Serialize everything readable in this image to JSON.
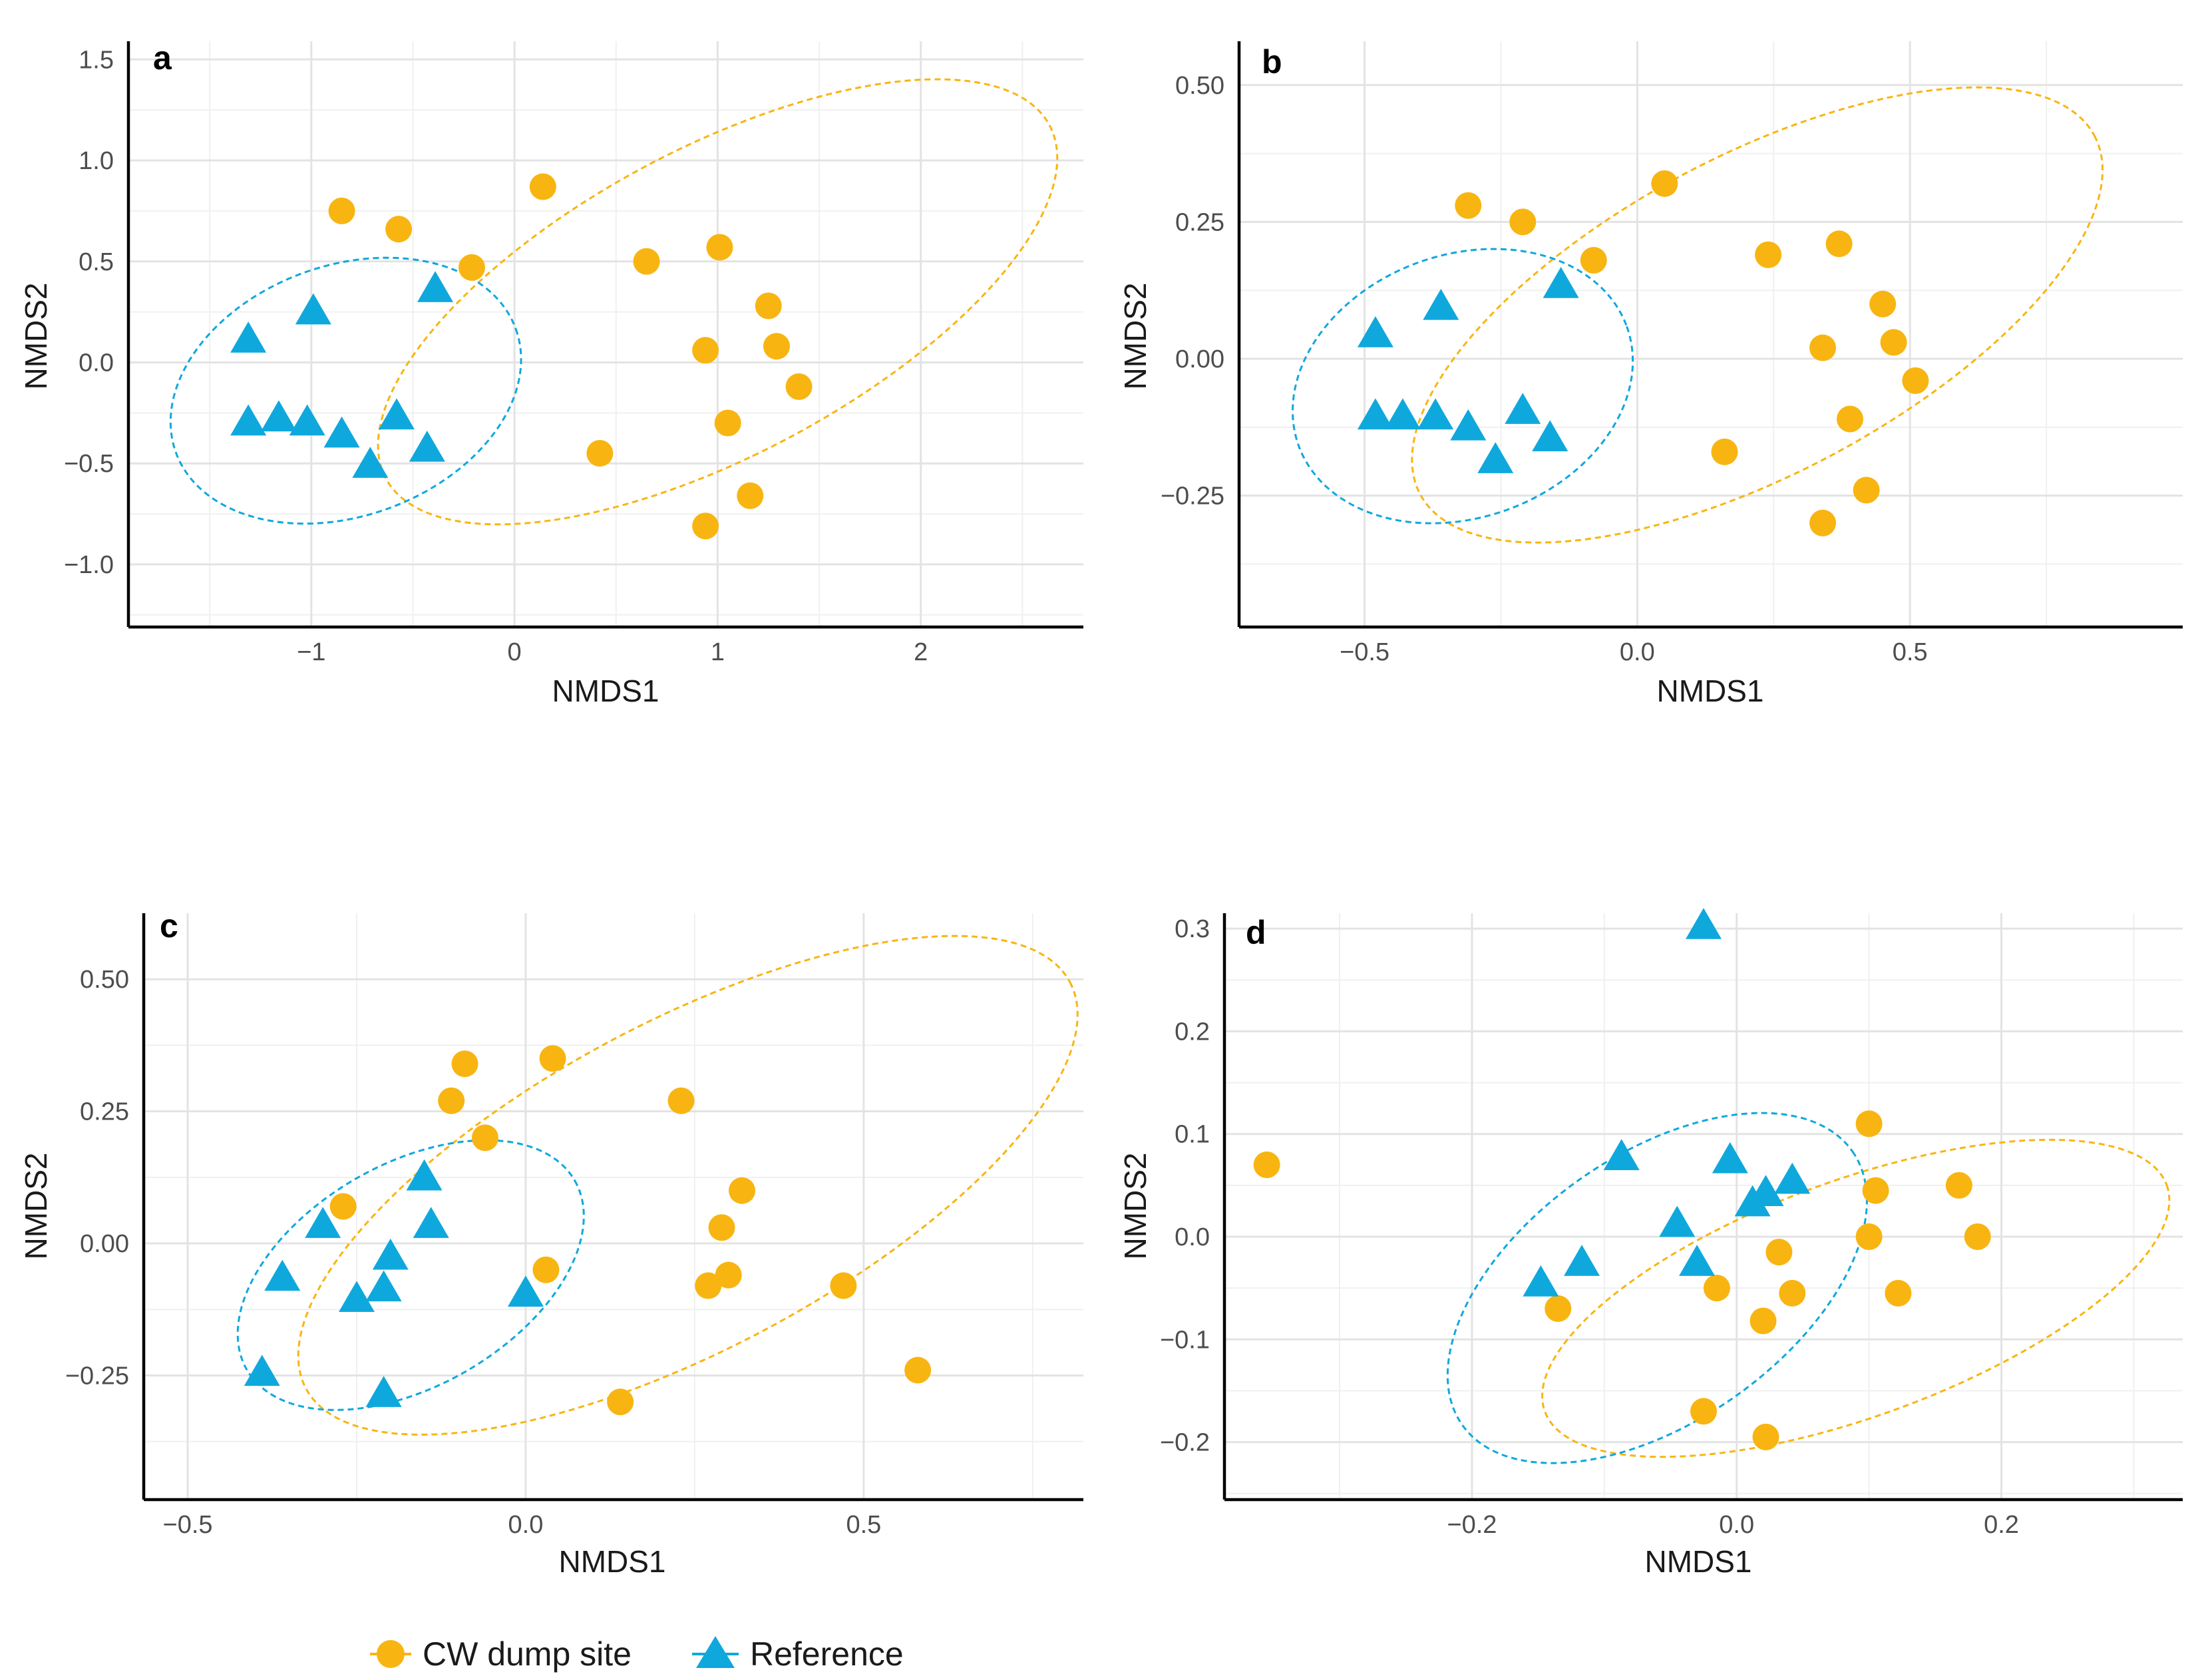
{
  "colors": {
    "cw": "#f8b511",
    "ref": "#0fa8dd",
    "grid_major": "#e3e3e3",
    "grid_minor": "#f0f0f0",
    "axis": "#000000"
  },
  "legend": {
    "cw_label": "CW dump site",
    "ref_label": "Reference"
  },
  "chart_data": [
    {
      "type": "scatter",
      "panel_label": "a",
      "xlabel": "NMDS1",
      "ylabel": "NMDS2",
      "xlim": [
        -1.9,
        2.8
      ],
      "ylim": [
        -1.31,
        1.59
      ],
      "xticks": [
        -1,
        0,
        1,
        2
      ],
      "xtick_labels": [
        "−1",
        "0",
        "1",
        "2"
      ],
      "yticks": [
        -1.0,
        -0.5,
        0.0,
        0.5,
        1.0,
        1.5
      ],
      "ytick_labels": [
        "−1.0",
        "−0.5",
        "0.0",
        "0.5",
        "1.0",
        "1.5"
      ],
      "series": [
        {
          "name": "CW dump site",
          "marker": "circle",
          "points": [
            [
              -0.85,
              0.75
            ],
            [
              -0.57,
              0.66
            ],
            [
              -0.21,
              0.47
            ],
            [
              0.14,
              0.87
            ],
            [
              0.65,
              0.5
            ],
            [
              1.01,
              0.57
            ],
            [
              1.25,
              0.28
            ],
            [
              1.29,
              0.08
            ],
            [
              0.94,
              0.06
            ],
            [
              1.4,
              -0.12
            ],
            [
              1.05,
              -0.3
            ],
            [
              0.42,
              -0.45
            ],
            [
              1.16,
              -0.66
            ],
            [
              0.94,
              -0.81
            ]
          ]
        },
        {
          "name": "Reference",
          "marker": "triangle",
          "points": [
            [
              -1.31,
              0.1
            ],
            [
              -0.99,
              0.24
            ],
            [
              -0.39,
              0.35
            ],
            [
              -1.31,
              -0.31
            ],
            [
              -1.16,
              -0.29
            ],
            [
              -1.02,
              -0.31
            ],
            [
              -0.85,
              -0.37
            ],
            [
              -0.58,
              -0.28
            ],
            [
              -0.71,
              -0.52
            ],
            [
              -0.43,
              -0.44
            ]
          ]
        }
      ],
      "ellipses": [
        {
          "series": "CW dump site",
          "cx": 1.0,
          "cy": 0.3,
          "rx": 1.85,
          "ry": 0.76,
          "angle_deg": -28
        },
        {
          "series": "Reference",
          "cx": -0.83,
          "cy": -0.14,
          "rx": 0.89,
          "ry": 0.62,
          "angle_deg": -20
        }
      ]
    },
    {
      "type": "scatter",
      "panel_label": "b",
      "xlabel": "NMDS1",
      "ylabel": "NMDS2",
      "xlim": [
        -0.73,
        1.0
      ],
      "ylim": [
        -0.49,
        0.58
      ],
      "xticks": [
        -0.5,
        0.0,
        0.5
      ],
      "xtick_labels": [
        "−0.5",
        "0.0",
        "0.5"
      ],
      "yticks": [
        -0.25,
        0.0,
        0.25,
        0.5
      ],
      "ytick_labels": [
        "−0.25",
        "0.00",
        "0.25",
        "0.50"
      ],
      "series": [
        {
          "name": "CW dump site",
          "marker": "circle",
          "points": [
            [
              -0.31,
              0.28
            ],
            [
              -0.21,
              0.25
            ],
            [
              -0.08,
              0.18
            ],
            [
              0.05,
              0.32
            ],
            [
              0.24,
              0.19
            ],
            [
              0.37,
              0.21
            ],
            [
              0.45,
              0.1
            ],
            [
              0.47,
              0.03
            ],
            [
              0.34,
              0.02
            ],
            [
              0.51,
              -0.04
            ],
            [
              0.39,
              -0.11
            ],
            [
              0.16,
              -0.17
            ],
            [
              0.42,
              -0.24
            ],
            [
              0.34,
              -0.3
            ]
          ]
        },
        {
          "name": "Reference",
          "marker": "triangle",
          "points": [
            [
              -0.48,
              0.04
            ],
            [
              -0.36,
              0.09
            ],
            [
              -0.14,
              0.13
            ],
            [
              -0.48,
              -0.11
            ],
            [
              -0.43,
              -0.11
            ],
            [
              -0.37,
              -0.11
            ],
            [
              -0.31,
              -0.13
            ],
            [
              -0.21,
              -0.1
            ],
            [
              -0.26,
              -0.19
            ],
            [
              -0.16,
              -0.15
            ]
          ]
        }
      ],
      "ellipses": [
        {
          "series": "CW dump site",
          "cx": 0.22,
          "cy": 0.08,
          "rx": 0.7,
          "ry": 0.29,
          "angle_deg": -28
        },
        {
          "series": "Reference",
          "cx": -0.32,
          "cy": -0.05,
          "rx": 0.32,
          "ry": 0.24,
          "angle_deg": -20
        }
      ]
    },
    {
      "type": "scatter",
      "panel_label": "c",
      "xlabel": "NMDS1",
      "ylabel": "NMDS2",
      "xlim": [
        -0.565,
        0.825
      ],
      "ylim": [
        -0.485,
        0.625
      ],
      "xticks": [
        -0.5,
        0.0,
        0.5
      ],
      "xtick_labels": [
        "−0.5",
        "0.0",
        "0.5"
      ],
      "yticks": [
        -0.25,
        0.0,
        0.25,
        0.5
      ],
      "ytick_labels": [
        "−0.25",
        "0.00",
        "0.25",
        "0.50"
      ],
      "series": [
        {
          "name": "CW dump site",
          "marker": "circle",
          "points": [
            [
              -0.09,
              0.34
            ],
            [
              0.04,
              0.35
            ],
            [
              -0.11,
              0.27
            ],
            [
              -0.06,
              0.2
            ],
            [
              0.23,
              0.27
            ],
            [
              -0.27,
              0.07
            ],
            [
              0.32,
              0.1
            ],
            [
              0.29,
              0.03
            ],
            [
              0.03,
              -0.05
            ],
            [
              0.3,
              -0.06
            ],
            [
              0.27,
              -0.08
            ],
            [
              0.47,
              -0.08
            ],
            [
              0.14,
              -0.3
            ],
            [
              0.58,
              -0.24
            ]
          ]
        },
        {
          "name": "Reference",
          "marker": "triangle",
          "points": [
            [
              -0.15,
              0.12
            ],
            [
              -0.3,
              0.03
            ],
            [
              -0.14,
              0.03
            ],
            [
              -0.2,
              -0.03
            ],
            [
              -0.36,
              -0.07
            ],
            [
              -0.21,
              -0.09
            ],
            [
              -0.25,
              -0.11
            ],
            [
              0.0,
              -0.1
            ],
            [
              -0.39,
              -0.25
            ],
            [
              -0.21,
              -0.29
            ]
          ]
        }
      ],
      "ellipses": [
        {
          "series": "CW dump site",
          "cx": 0.24,
          "cy": 0.11,
          "rx": 0.64,
          "ry": 0.31,
          "angle_deg": -28
        },
        {
          "series": "Reference",
          "cx": -0.17,
          "cy": -0.06,
          "rx": 0.28,
          "ry": 0.21,
          "angle_deg": -30
        }
      ]
    },
    {
      "type": "scatter",
      "panel_label": "d",
      "xlabel": "NMDS1",
      "ylabel": "NMDS2",
      "xlim": [
        -0.387,
        0.337
      ],
      "ylim": [
        -0.256,
        0.315
      ],
      "xticks": [
        -0.2,
        0.0,
        0.2
      ],
      "xtick_labels": [
        "−0.2",
        "0.0",
        "0.2"
      ],
      "yticks": [
        -0.2,
        -0.1,
        0.0,
        0.1,
        0.2,
        0.3
      ],
      "ytick_labels": [
        "−0.2",
        "−0.1",
        "0.0",
        "0.1",
        "0.2",
        "0.3"
      ],
      "series": [
        {
          "name": "CW dump site",
          "marker": "circle",
          "points": [
            [
              -0.355,
              0.07
            ],
            [
              0.1,
              0.11
            ],
            [
              0.105,
              0.045
            ],
            [
              0.168,
              0.05
            ],
            [
              0.1,
              0.0
            ],
            [
              0.182,
              0.0
            ],
            [
              0.032,
              -0.015
            ],
            [
              -0.135,
              -0.07
            ],
            [
              -0.015,
              -0.05
            ],
            [
              0.042,
              -0.055
            ],
            [
              0.122,
              -0.055
            ],
            [
              0.02,
              -0.082
            ],
            [
              -0.025,
              -0.17
            ],
            [
              0.022,
              -0.195
            ]
          ]
        },
        {
          "name": "Reference",
          "marker": "triangle",
          "points": [
            [
              -0.025,
              0.3
            ],
            [
              -0.087,
              0.075
            ],
            [
              -0.005,
              0.072
            ],
            [
              0.042,
              0.052
            ],
            [
              0.022,
              0.04
            ],
            [
              0.012,
              0.03
            ],
            [
              -0.045,
              0.01
            ],
            [
              -0.117,
              -0.028
            ],
            [
              -0.03,
              -0.028
            ],
            [
              -0.148,
              -0.048
            ]
          ]
        }
      ],
      "ellipses": [
        {
          "series": "CW dump site",
          "cx": 0.09,
          "cy": -0.06,
          "rx": 0.25,
          "ry": 0.115,
          "angle_deg": -20
        },
        {
          "series": "Reference",
          "cx": -0.06,
          "cy": -0.05,
          "rx": 0.18,
          "ry": 0.13,
          "angle_deg": -35
        }
      ]
    }
  ]
}
